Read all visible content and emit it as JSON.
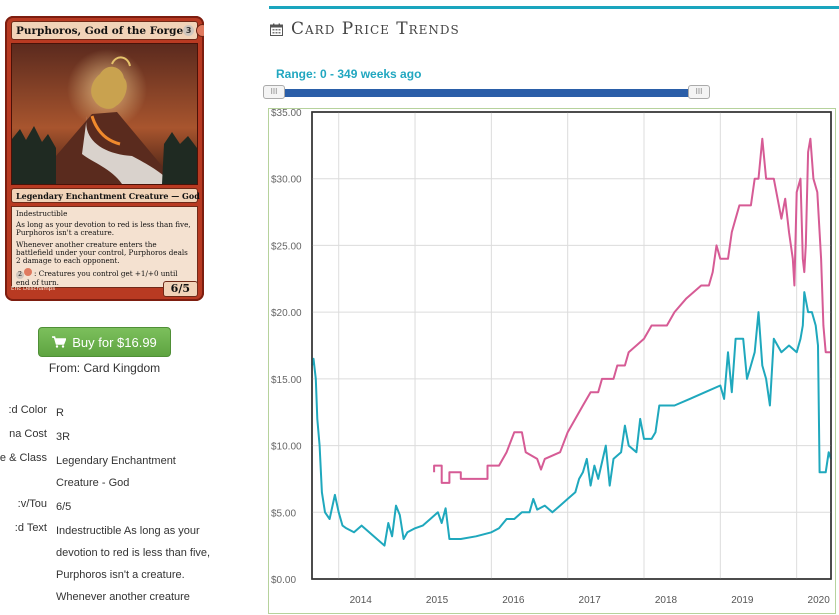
{
  "card": {
    "name": "Purphoros, God of the Forge",
    "mana_cost": "3",
    "type_line": "Legendary Enchantment Creature — God",
    "rules_text": [
      "Indestructible",
      "As long as your devotion to red is less than five, Purphoros isn't a creature.",
      "Whenever another creature enters the battlefield under your control, Purphoros deals 2 damage to each opponent.",
      ": Creatures you control get +1/+0 until end of turn."
    ],
    "activation_cost": "2",
    "artist": "Eric Deschamps",
    "pt": "6/5",
    "colors": {
      "frame": "#b83a22"
    }
  },
  "buy": {
    "label": "Buy for $16.99",
    "icon": "cart-icon",
    "color": "#5ea441"
  },
  "from": "From: Card Kingdom",
  "details": [
    {
      "label": "d Color:",
      "value": [
        "R"
      ]
    },
    {
      "label": "na Cost",
      "value": [
        "3R"
      ]
    },
    {
      "label": "e & Class:",
      "value": [
        "Legendary Enchantment",
        "Creature - God"
      ]
    },
    {
      "label": "v/Tou:",
      "value": [
        "6/5"
      ]
    },
    {
      "label": "d Text:",
      "value": [
        "Indestructible As long as your",
        "devotion to red is less than five,",
        "Purphoros isn't a creature.",
        "Whenever another creature"
      ]
    }
  ],
  "header": {
    "title": "Card Price Trends",
    "icon": "calendar-icon",
    "accent": "#1aa5be"
  },
  "range_label": "Range: 0 - 349 weeks ago",
  "slider": {
    "min_weeks": 0,
    "max_weeks": 349,
    "handle_glyph": "III"
  },
  "chart_data": {
    "type": "line",
    "title": "",
    "xlabel": "",
    "ylabel": "",
    "x_ticks": [
      "2014",
      "2015",
      "2016",
      "2017",
      "2018",
      "2019",
      "2020"
    ],
    "y_ticks": [
      "$0.00",
      "$5.00",
      "$10.00",
      "$15.00",
      "$20.00",
      "$25.00",
      "$30.00",
      "$35.00"
    ],
    "xlim": [
      2013.65,
      2020.45
    ],
    "ylim": [
      0,
      35
    ],
    "grid": true,
    "series": [
      {
        "color": "#d65b95",
        "points": [
          [
            2015.25,
            8.0
          ],
          [
            2015.25,
            8.5
          ],
          [
            2015.35,
            8.5
          ],
          [
            2015.35,
            7.2
          ],
          [
            2015.45,
            7.2
          ],
          [
            2015.45,
            8.0
          ],
          [
            2015.6,
            8.0
          ],
          [
            2015.6,
            7.5
          ],
          [
            2015.95,
            7.5
          ],
          [
            2015.95,
            8.5
          ],
          [
            2016.1,
            8.5
          ],
          [
            2016.2,
            9.5
          ],
          [
            2016.3,
            11.0
          ],
          [
            2016.4,
            11.0
          ],
          [
            2016.45,
            9.5
          ],
          [
            2016.6,
            9.0
          ],
          [
            2016.65,
            8.2
          ],
          [
            2016.7,
            9.0
          ],
          [
            2016.9,
            9.5
          ],
          [
            2017.0,
            11.0
          ],
          [
            2017.1,
            12.0
          ],
          [
            2017.2,
            13.0
          ],
          [
            2017.3,
            14.0
          ],
          [
            2017.4,
            14.0
          ],
          [
            2017.45,
            15.0
          ],
          [
            2017.6,
            15.0
          ],
          [
            2017.65,
            16.0
          ],
          [
            2017.75,
            16.0
          ],
          [
            2017.8,
            17.0
          ],
          [
            2017.9,
            17.5
          ],
          [
            2018.0,
            18.0
          ],
          [
            2018.1,
            19.0
          ],
          [
            2018.3,
            19.0
          ],
          [
            2018.4,
            20.0
          ],
          [
            2018.55,
            21.0
          ],
          [
            2018.75,
            22.0
          ],
          [
            2018.85,
            22.0
          ],
          [
            2018.9,
            23.0
          ],
          [
            2018.95,
            25.0
          ],
          [
            2019.0,
            24.0
          ],
          [
            2019.1,
            24.0
          ],
          [
            2019.15,
            26.0
          ],
          [
            2019.2,
            27.0
          ],
          [
            2019.25,
            28.0
          ],
          [
            2019.4,
            28.0
          ],
          [
            2019.45,
            30.0
          ],
          [
            2019.5,
            30.0
          ],
          [
            2019.55,
            33.0
          ],
          [
            2019.6,
            30.0
          ],
          [
            2019.7,
            30.0
          ],
          [
            2019.75,
            28.5
          ],
          [
            2019.8,
            27.0
          ],
          [
            2019.85,
            28.5
          ],
          [
            2019.9,
            26.0
          ],
          [
            2019.95,
            24.0
          ],
          [
            2019.97,
            22.0
          ],
          [
            2020.0,
            29.0
          ],
          [
            2020.05,
            30.0
          ],
          [
            2020.08,
            24.0
          ],
          [
            2020.1,
            23.0
          ],
          [
            2020.12,
            25.0
          ],
          [
            2020.15,
            32.0
          ],
          [
            2020.18,
            33.0
          ],
          [
            2020.22,
            30.0
          ],
          [
            2020.27,
            29.0
          ],
          [
            2020.32,
            24.0
          ],
          [
            2020.35,
            19.0
          ],
          [
            2020.38,
            17.0
          ],
          [
            2020.45,
            17.0
          ]
        ]
      },
      {
        "color": "#1fa8bd",
        "points": [
          [
            2013.65,
            16.0
          ],
          [
            2013.67,
            16.5
          ],
          [
            2013.7,
            15.0
          ],
          [
            2013.72,
            12.0
          ],
          [
            2013.75,
            10.0
          ],
          [
            2013.78,
            6.5
          ],
          [
            2013.82,
            5.0
          ],
          [
            2013.88,
            4.5
          ],
          [
            2013.95,
            6.3
          ],
          [
            2014.0,
            5.0
          ],
          [
            2014.05,
            4.0
          ],
          [
            2014.1,
            3.8
          ],
          [
            2014.2,
            3.5
          ],
          [
            2014.3,
            4.0
          ],
          [
            2014.4,
            3.5
          ],
          [
            2014.5,
            3.0
          ],
          [
            2014.6,
            2.5
          ],
          [
            2014.65,
            4.2
          ],
          [
            2014.7,
            3.2
          ],
          [
            2014.75,
            5.5
          ],
          [
            2014.8,
            4.8
          ],
          [
            2014.85,
            3.0
          ],
          [
            2014.9,
            3.5
          ],
          [
            2015.0,
            3.8
          ],
          [
            2015.1,
            4.0
          ],
          [
            2015.2,
            4.5
          ],
          [
            2015.3,
            5.0
          ],
          [
            2015.35,
            4.2
          ],
          [
            2015.4,
            5.3
          ],
          [
            2015.45,
            3.0
          ],
          [
            2015.6,
            3.0
          ],
          [
            2015.8,
            3.2
          ],
          [
            2016.0,
            3.5
          ],
          [
            2016.1,
            3.8
          ],
          [
            2016.2,
            4.5
          ],
          [
            2016.3,
            4.5
          ],
          [
            2016.4,
            5.0
          ],
          [
            2016.5,
            5.0
          ],
          [
            2016.55,
            6.0
          ],
          [
            2016.6,
            5.2
          ],
          [
            2016.7,
            5.5
          ],
          [
            2016.8,
            5.0
          ],
          [
            2016.9,
            5.5
          ],
          [
            2017.0,
            6.0
          ],
          [
            2017.1,
            6.5
          ],
          [
            2017.15,
            7.5
          ],
          [
            2017.2,
            8.0
          ],
          [
            2017.25,
            9.0
          ],
          [
            2017.3,
            7.0
          ],
          [
            2017.35,
            8.5
          ],
          [
            2017.4,
            7.5
          ],
          [
            2017.5,
            10.0
          ],
          [
            2017.55,
            7.0
          ],
          [
            2017.6,
            9.0
          ],
          [
            2017.7,
            9.5
          ],
          [
            2017.75,
            11.5
          ],
          [
            2017.8,
            10.0
          ],
          [
            2017.9,
            9.5
          ],
          [
            2017.95,
            12.0
          ],
          [
            2018.0,
            10.5
          ],
          [
            2018.1,
            10.5
          ],
          [
            2018.15,
            11.0
          ],
          [
            2018.2,
            13.0
          ],
          [
            2018.4,
            13.0
          ],
          [
            2018.6,
            13.5
          ],
          [
            2018.8,
            14.0
          ],
          [
            2019.0,
            14.5
          ],
          [
            2019.05,
            13.5
          ],
          [
            2019.1,
            17.0
          ],
          [
            2019.15,
            14.0
          ],
          [
            2019.2,
            18.0
          ],
          [
            2019.3,
            18.0
          ],
          [
            2019.35,
            15.0
          ],
          [
            2019.4,
            16.0
          ],
          [
            2019.45,
            17.0
          ],
          [
            2019.5,
            20.0
          ],
          [
            2019.55,
            16.0
          ],
          [
            2019.6,
            15.0
          ],
          [
            2019.65,
            13.0
          ],
          [
            2019.7,
            18.0
          ],
          [
            2019.8,
            17.0
          ],
          [
            2019.9,
            17.5
          ],
          [
            2020.0,
            17.0
          ],
          [
            2020.05,
            18.0
          ],
          [
            2020.08,
            19.0
          ],
          [
            2020.1,
            21.5
          ],
          [
            2020.15,
            20.0
          ],
          [
            2020.2,
            20.0
          ],
          [
            2020.25,
            19.0
          ],
          [
            2020.28,
            17.5
          ],
          [
            2020.3,
            8.0
          ],
          [
            2020.38,
            8.0
          ],
          [
            2020.42,
            9.5
          ],
          [
            2020.45,
            9.0
          ]
        ]
      }
    ]
  }
}
